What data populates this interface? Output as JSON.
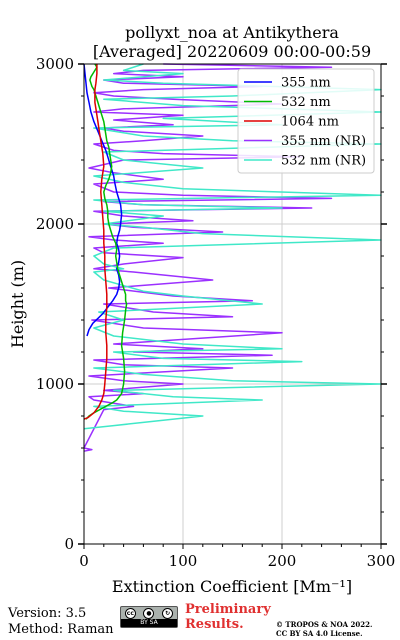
{
  "chart_data": {
    "type": "line",
    "title_line1": "pollyxt_noa at Antikythera",
    "title_line2": "[Averaged] 20220609 00:00-00:59",
    "xlabel": "Extinction Coefficient [Mm⁻¹]",
    "ylabel": "Height (m)",
    "xlim": [
      0,
      300
    ],
    "ylim": [
      0,
      3000
    ],
    "xticks": [
      "0",
      "100",
      "200",
      "300"
    ],
    "yticks": [
      "0",
      "1000",
      "2000",
      "3000"
    ],
    "grid": true,
    "legend_position": "top-right",
    "series": [
      {
        "name": "355 nm",
        "color": "#0000ff",
        "x": [
          3,
          5,
          9,
          14,
          19,
          24,
          29,
          33,
          35,
          36,
          35,
          33,
          35,
          36,
          35,
          33,
          34,
          36,
          37,
          38,
          37,
          33,
          31,
          30,
          28,
          26,
          24,
          22,
          18,
          14,
          10,
          7,
          5,
          3,
          2,
          1,
          0
        ],
        "y": [
          1300,
          1340,
          1380,
          1410,
          1440,
          1480,
          1520,
          1560,
          1600,
          1640,
          1680,
          1720,
          1760,
          1800,
          1840,
          1880,
          1920,
          1960,
          2000,
          2060,
          2120,
          2200,
          2260,
          2300,
          2340,
          2380,
          2420,
          2460,
          2520,
          2580,
          2640,
          2700,
          2760,
          2820,
          2880,
          2940,
          3000
        ]
      },
      {
        "name": "532 nm",
        "color": "#00bb00",
        "x": [
          2,
          5,
          10,
          16,
          22,
          28,
          33,
          38,
          40,
          41,
          40,
          38,
          39,
          41,
          42,
          43,
          42,
          42,
          40,
          38,
          36,
          34,
          33,
          32,
          33,
          32,
          29,
          27,
          25,
          24,
          24,
          23,
          21,
          20,
          22,
          25,
          27,
          28,
          27,
          26,
          25,
          23,
          22,
          21,
          20,
          18,
          16,
          14,
          12,
          10,
          8,
          7,
          6,
          7,
          9,
          11,
          13,
          11
        ],
        "y": [
          780,
          800,
          820,
          840,
          860,
          880,
          900,
          940,
          1000,
          1080,
          1160,
          1240,
          1320,
          1400,
          1460,
          1500,
          1520,
          1560,
          1600,
          1640,
          1680,
          1720,
          1760,
          1800,
          1840,
          1880,
          1920,
          1960,
          2000,
          2040,
          2080,
          2120,
          2160,
          2200,
          2240,
          2280,
          2320,
          2360,
          2400,
          2440,
          2480,
          2520,
          2560,
          2600,
          2640,
          2680,
          2720,
          2760,
          2800,
          2840,
          2860,
          2880,
          2900,
          2920,
          2940,
          2960,
          2980,
          3000
        ]
      },
      {
        "name": "1064 nm",
        "color": "#dd0000",
        "x": [
          0,
          4,
          10,
          15,
          18,
          20,
          21,
          22,
          23,
          23,
          22,
          22,
          23,
          23,
          22,
          21,
          21,
          20,
          20,
          19,
          18,
          17,
          18,
          20,
          19,
          17,
          15,
          14,
          13,
          12,
          11,
          11,
          11,
          12,
          13,
          13
        ],
        "y": [
          780,
          790,
          820,
          860,
          900,
          940,
          1000,
          1080,
          1160,
          1240,
          1320,
          1400,
          1480,
          1560,
          1640,
          1720,
          1800,
          1880,
          1960,
          2040,
          2120,
          2200,
          2280,
          2360,
          2440,
          2520,
          2600,
          2640,
          2680,
          2720,
          2760,
          2800,
          2840,
          2880,
          2940,
          3000
        ]
      },
      {
        "name": "355 nm (NR)",
        "color": "#9b30ff",
        "x": [
          0,
          8,
          0,
          20,
          50,
          30,
          10,
          5,
          60,
          20,
          100,
          40,
          5,
          150,
          40,
          10,
          190,
          50,
          120,
          30,
          200,
          60,
          8,
          150,
          70,
          20,
          170,
          90,
          25,
          130,
          50,
          10,
          40,
          100,
          20,
          10,
          80,
          30,
          5,
          140,
          50,
          20,
          110,
          40,
          10,
          230,
          60,
          20,
          250,
          100,
          30,
          10,
          80,
          30,
          5,
          40,
          220,
          80,
          30,
          10,
          60,
          120,
          40,
          20,
          90,
          30,
          100,
          10,
          40,
          200,
          90,
          30,
          10,
          60,
          180,
          40,
          20,
          100,
          30,
          60,
          250,
          80
        ],
        "y": [
          580,
          590,
          600,
          840,
          860,
          880,
          900,
          920,
          940,
          960,
          1000,
          1020,
          1050,
          1100,
          1120,
          1150,
          1180,
          1200,
          1220,
          1250,
          1320,
          1350,
          1400,
          1420,
          1450,
          1500,
          1520,
          1550,
          1600,
          1650,
          1700,
          1720,
          1750,
          1790,
          1820,
          1850,
          1880,
          1900,
          1920,
          1950,
          1980,
          2000,
          2020,
          2050,
          2080,
          2100,
          2120,
          2140,
          2160,
          2180,
          2200,
          2250,
          2280,
          2320,
          2350,
          2400,
          2420,
          2440,
          2460,
          2500,
          2520,
          2550,
          2580,
          2600,
          2620,
          2650,
          2680,
          2700,
          2720,
          2750,
          2780,
          2800,
          2820,
          2840,
          2860,
          2880,
          2900,
          2920,
          2940,
          2960,
          2980,
          3000
        ]
      },
      {
        "name": "532 nm (NR)",
        "color": "#40e8c8",
        "x": [
          0,
          30,
          60,
          120,
          40,
          10,
          180,
          90,
          30,
          300,
          150,
          60,
          10,
          220,
          80,
          30,
          200,
          100,
          30,
          10,
          40,
          15,
          180,
          100,
          60,
          20,
          10,
          40,
          20,
          10,
          30,
          300,
          120,
          60,
          20,
          80,
          20,
          200,
          60,
          10,
          300,
          100,
          40,
          10,
          120,
          40,
          20,
          300,
          150,
          60,
          10,
          200,
          80,
          300,
          100,
          20,
          150,
          300,
          80,
          20,
          100,
          40,
          60
        ],
        "y": [
          720,
          740,
          760,
          800,
          830,
          860,
          900,
          920,
          960,
          1000,
          1020,
          1060,
          1100,
          1140,
          1160,
          1200,
          1220,
          1250,
          1300,
          1350,
          1400,
          1450,
          1500,
          1550,
          1580,
          1650,
          1700,
          1720,
          1750,
          1800,
          1850,
          1900,
          1940,
          1980,
          2000,
          2050,
          2080,
          2100,
          2120,
          2150,
          2180,
          2220,
          2260,
          2300,
          2350,
          2400,
          2450,
          2500,
          2520,
          2550,
          2600,
          2620,
          2660,
          2700,
          2740,
          2780,
          2800,
          2840,
          2880,
          2900,
          2940,
          2960,
          3000
        ]
      }
    ]
  },
  "footer": {
    "version_line": "Version: 3.5",
    "method_line": "Method: Raman",
    "cc_label": "BY SA",
    "preliminary_line1": "Preliminary",
    "preliminary_line2": "Results.",
    "copyright_line1": "© TROPOS & NOA 2022.",
    "copyright_line2": "CC BY SA 4.0 License."
  }
}
